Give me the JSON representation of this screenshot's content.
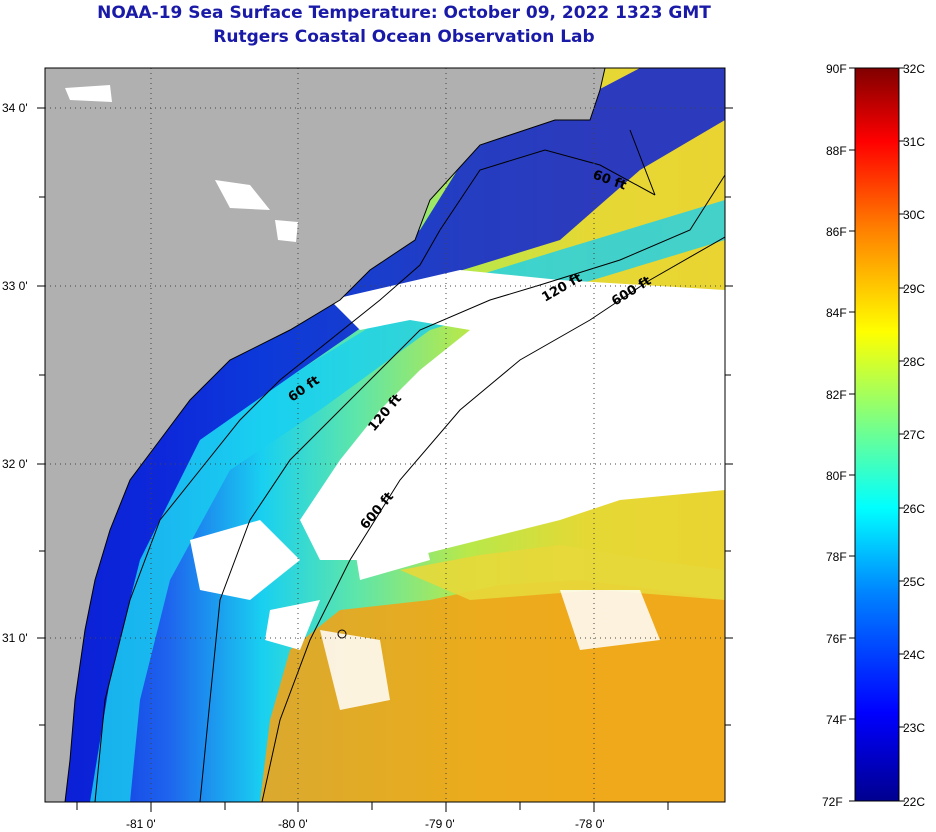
{
  "header": {
    "title": "NOAA-19 Sea Surface Temperature:  October 09, 2022 1323 GMT",
    "subtitle": "Rutgers Coastal Ocean Observation Lab"
  },
  "map": {
    "lon_labels": [
      "-81 0'",
      "-80 0'",
      "-79 0'",
      "-78 0'"
    ],
    "lat_labels": [
      "34 0'",
      "33 0'",
      "32 0'",
      "31 0'"
    ],
    "contour_labels": [
      "60 ft",
      "120 ft",
      "600 ft",
      "60 ft",
      "120 ft",
      "600 ft"
    ],
    "colors": {
      "land": "#b0b0b0",
      "cloud": "#ffffff",
      "sst_cold": "#0a1fd6",
      "sst_mid": "#19d0f0",
      "sst_warm": "#f0a418"
    }
  },
  "colorbar": {
    "f_labels": [
      "90F",
      "88F",
      "86F",
      "84F",
      "82F",
      "80F",
      "78F",
      "76F",
      "74F",
      "72F"
    ],
    "c_labels": [
      "32C",
      "31C",
      "30C",
      "29C",
      "28C",
      "27C",
      "26C",
      "25C",
      "24C",
      "23C",
      "22C"
    ],
    "colors": [
      "#00008f",
      "#0000ff",
      "#0080ff",
      "#00ffff",
      "#80ff80",
      "#ffff00",
      "#ff8000",
      "#ff0000",
      "#800000"
    ]
  }
}
